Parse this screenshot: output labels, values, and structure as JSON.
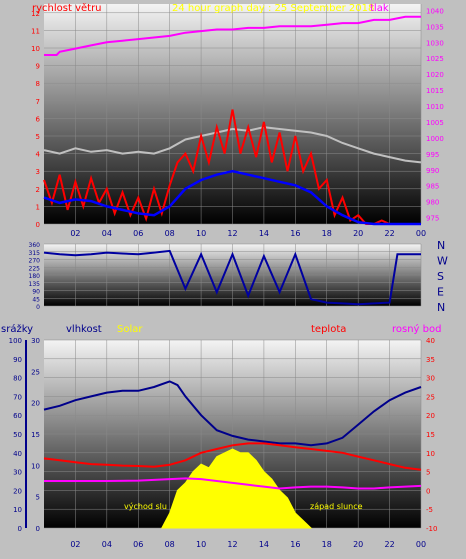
{
  "title": "24 hour graph day : 25 September 2018",
  "colors": {
    "frame_bg": "#c0c0c0",
    "wind_speed": "#ff0000",
    "wind_avg": "#0000ff",
    "wind_gust": "#c0c0c0",
    "pressure": "#ff00ff",
    "direction": "#0000a0",
    "humidity": "#00008b",
    "temperature": "#ff0000",
    "dewpoint": "#ff00ff",
    "solar": "#ffff00",
    "title_color": "#ffff00",
    "rain_axis": "#00008b"
  },
  "chart_data": [
    {
      "type": "line",
      "name": "wind-pressure",
      "legend": {
        "wind": "rychlost větru",
        "pressure": "tlak"
      },
      "x_ticks": [
        "02",
        "04",
        "06",
        "08",
        "10",
        "12",
        "14",
        "16",
        "18",
        "20",
        "22",
        "00"
      ],
      "y_left_ticks": [
        "0",
        "1",
        "2",
        "3",
        "4",
        "5",
        "6",
        "7",
        "8",
        "9",
        "10",
        "11",
        "12"
      ],
      "y_left_range": [
        0,
        12.5
      ],
      "y_right_ticks": [
        "975",
        "980",
        "985",
        "990",
        "995",
        "1000",
        "1005",
        "1010",
        "1015",
        "1020",
        "1025",
        "1030",
        "1035",
        "1040"
      ],
      "y_right_range": [
        973,
        1042
      ],
      "x_range": [
        0,
        24
      ],
      "series": [
        {
          "key": "gust",
          "points": [
            [
              0,
              4.2
            ],
            [
              1,
              4.0
            ],
            [
              2,
              4.3
            ],
            [
              3,
              4.1
            ],
            [
              4,
              4.2
            ],
            [
              5,
              4.0
            ],
            [
              6,
              4.1
            ],
            [
              7,
              4.0
            ],
            [
              8,
              4.3
            ],
            [
              9,
              4.8
            ],
            [
              10,
              5.0
            ],
            [
              11,
              5.2
            ],
            [
              12,
              5.4
            ],
            [
              13,
              5.3
            ],
            [
              14,
              5.5
            ],
            [
              15,
              5.4
            ],
            [
              16,
              5.3
            ],
            [
              17,
              5.2
            ],
            [
              18,
              5.0
            ],
            [
              19,
              4.6
            ],
            [
              20,
              4.3
            ],
            [
              21,
              4.0
            ],
            [
              22,
              3.8
            ],
            [
              23,
              3.6
            ],
            [
              24,
              3.5
            ]
          ]
        },
        {
          "key": "wind",
          "points": [
            [
              0,
              2.5
            ],
            [
              0.5,
              1.2
            ],
            [
              1,
              2.8
            ],
            [
              1.5,
              0.8
            ],
            [
              2,
              2.4
            ],
            [
              2.5,
              1.0
            ],
            [
              3,
              2.6
            ],
            [
              3.5,
              1.2
            ],
            [
              4,
              2.0
            ],
            [
              4.5,
              0.6
            ],
            [
              5,
              1.8
            ],
            [
              5.5,
              0.5
            ],
            [
              6,
              1.5
            ],
            [
              6.5,
              0.3
            ],
            [
              7,
              2.0
            ],
            [
              7.5,
              0.6
            ],
            [
              8,
              2.2
            ],
            [
              8.5,
              3.5
            ],
            [
              9,
              4.0
            ],
            [
              9.5,
              3.0
            ],
            [
              10,
              5.0
            ],
            [
              10.5,
              3.5
            ],
            [
              11,
              5.5
            ],
            [
              11.5,
              4.0
            ],
            [
              12,
              6.5
            ],
            [
              12.5,
              4.0
            ],
            [
              13,
              5.5
            ],
            [
              13.5,
              3.8
            ],
            [
              14,
              5.8
            ],
            [
              14.5,
              3.5
            ],
            [
              15,
              5.2
            ],
            [
              15.5,
              3.0
            ],
            [
              16,
              5.0
            ],
            [
              16.5,
              3.0
            ],
            [
              17,
              4.0
            ],
            [
              17.5,
              2.0
            ],
            [
              18,
              2.5
            ],
            [
              18.5,
              0.5
            ],
            [
              19,
              1.5
            ],
            [
              19.5,
              0.2
            ],
            [
              20,
              0.5
            ],
            [
              20.5,
              0
            ],
            [
              21,
              0
            ],
            [
              21.5,
              0.2
            ],
            [
              22,
              0
            ],
            [
              23,
              0
            ],
            [
              24,
              0
            ]
          ]
        },
        {
          "key": "avg",
          "points": [
            [
              0,
              1.5
            ],
            [
              1,
              1.2
            ],
            [
              2,
              1.4
            ],
            [
              3,
              1.3
            ],
            [
              4,
              1.0
            ],
            [
              5,
              0.8
            ],
            [
              6,
              0.6
            ],
            [
              7,
              0.5
            ],
            [
              8,
              1.0
            ],
            [
              9,
              2.0
            ],
            [
              10,
              2.5
            ],
            [
              11,
              2.8
            ],
            [
              12,
              3.0
            ],
            [
              13,
              2.8
            ],
            [
              14,
              2.6
            ],
            [
              15,
              2.4
            ],
            [
              16,
              2.2
            ],
            [
              17,
              1.8
            ],
            [
              18,
              1.0
            ],
            [
              19,
              0.5
            ],
            [
              20,
              0.1
            ],
            [
              21,
              0
            ],
            [
              22,
              0
            ],
            [
              23,
              0
            ],
            [
              24,
              0
            ]
          ]
        },
        {
          "key": "pressure",
          "points": [
            [
              0,
              1026
            ],
            [
              0.8,
              1026
            ],
            [
              1,
              1027
            ],
            [
              2,
              1028
            ],
            [
              3,
              1029
            ],
            [
              4,
              1030
            ],
            [
              5,
              1030.5
            ],
            [
              6,
              1031
            ],
            [
              7,
              1031.5
            ],
            [
              8,
              1032
            ],
            [
              9,
              1033
            ],
            [
              10,
              1033.5
            ],
            [
              11,
              1034
            ],
            [
              12,
              1034
            ],
            [
              13,
              1034.5
            ],
            [
              14,
              1034.5
            ],
            [
              15,
              1035
            ],
            [
              16,
              1035
            ],
            [
              17,
              1035
            ],
            [
              18,
              1035.5
            ],
            [
              19,
              1036
            ],
            [
              20,
              1036
            ],
            [
              21,
              1037
            ],
            [
              22,
              1037
            ],
            [
              23,
              1038
            ],
            [
              24,
              1038
            ]
          ]
        }
      ]
    },
    {
      "type": "line",
      "name": "wind-direction",
      "direction_labels": [
        "N",
        "W",
        "S",
        "E",
        "N"
      ],
      "x_ticks": [
        "02",
        "04",
        "06",
        "08",
        "10",
        "12",
        "14",
        "16",
        "18",
        "20",
        "22",
        "00"
      ],
      "y_ticks": [
        "0",
        "45",
        "90",
        "135",
        "180",
        "225",
        "270",
        "315",
        "360"
      ],
      "y_range": [
        0,
        360
      ],
      "x_range": [
        0,
        24
      ],
      "series": [
        {
          "key": "direction",
          "points": [
            [
              0,
              310
            ],
            [
              1,
              300
            ],
            [
              2,
              295
            ],
            [
              3,
              300
            ],
            [
              4,
              310
            ],
            [
              5,
              305
            ],
            [
              6,
              300
            ],
            [
              7,
              310
            ],
            [
              8,
              320
            ],
            [
              9,
              100
            ],
            [
              10,
              300
            ],
            [
              11,
              80
            ],
            [
              12,
              300
            ],
            [
              13,
              60
            ],
            [
              14,
              290
            ],
            [
              15,
              80
            ],
            [
              16,
              300
            ],
            [
              17,
              40
            ],
            [
              18,
              20
            ],
            [
              19,
              15
            ],
            [
              20,
              10
            ],
            [
              21,
              15
            ],
            [
              22,
              20
            ],
            [
              22.5,
              300
            ],
            [
              23,
              300
            ],
            [
              24,
              300
            ]
          ]
        }
      ]
    },
    {
      "type": "area",
      "name": "humidity-temp-solar",
      "legend": {
        "rain": "srážky",
        "humidity": "vlhkost",
        "solar": "Solar",
        "temperature": "teplota",
        "dewpoint": "rosný bod"
      },
      "annotations": {
        "sunrise": "východ slu",
        "sunset": "západ slunce"
      },
      "x_ticks": [
        "02",
        "04",
        "06",
        "08",
        "10",
        "12",
        "14",
        "16",
        "18",
        "20",
        "22",
        "00"
      ],
      "y_rain_ticks": [
        "0",
        "10",
        "20",
        "30",
        "40",
        "50",
        "60",
        "70",
        "80",
        "90",
        "100"
      ],
      "y_rain_range": [
        0,
        100
      ],
      "y_humidity_ticks": [
        "0",
        "5",
        "10",
        "15",
        "20",
        "25",
        "30"
      ],
      "y_humidity_range": [
        0,
        30
      ],
      "y_temp_ticks": [
        "-10",
        "-5",
        "0",
        "5",
        "10",
        "15",
        "20",
        "25",
        "30",
        "35",
        "40"
      ],
      "y_temp_range": [
        -10,
        40
      ],
      "x_range": [
        0,
        24
      ],
      "series": [
        {
          "key": "humidity",
          "axis": "rain",
          "points": [
            [
              0,
              63
            ],
            [
              1,
              65
            ],
            [
              2,
              68
            ],
            [
              3,
              70
            ],
            [
              4,
              72
            ],
            [
              5,
              73
            ],
            [
              6,
              73
            ],
            [
              7,
              75
            ],
            [
              8,
              78
            ],
            [
              8.5,
              76
            ],
            [
              9,
              70
            ],
            [
              10,
              60
            ],
            [
              11,
              52
            ],
            [
              12,
              49
            ],
            [
              13,
              47
            ],
            [
              14,
              46
            ],
            [
              15,
              45
            ],
            [
              16,
              45
            ],
            [
              17,
              44
            ],
            [
              18,
              45
            ],
            [
              19,
              48
            ],
            [
              20,
              55
            ],
            [
              21,
              62
            ],
            [
              22,
              68
            ],
            [
              23,
              72
            ],
            [
              24,
              75
            ]
          ]
        },
        {
          "key": "temperature",
          "axis": "temp",
          "points": [
            [
              0,
              8.5
            ],
            [
              1,
              8.0
            ],
            [
              2,
              7.5
            ],
            [
              3,
              7.0
            ],
            [
              4,
              6.8
            ],
            [
              5,
              6.6
            ],
            [
              6,
              6.5
            ],
            [
              7,
              6.3
            ],
            [
              8,
              6.8
            ],
            [
              9,
              8.0
            ],
            [
              10,
              10.0
            ],
            [
              11,
              11.0
            ],
            [
              12,
              12.0
            ],
            [
              13,
              12.5
            ],
            [
              14,
              12.5
            ],
            [
              15,
              12.0
            ],
            [
              16,
              11.5
            ],
            [
              17,
              11.0
            ],
            [
              18,
              10.5
            ],
            [
              19,
              10.0
            ],
            [
              20,
              9.0
            ],
            [
              21,
              8.0
            ],
            [
              22,
              7.0
            ],
            [
              23,
              6.0
            ],
            [
              24,
              5.5
            ]
          ]
        },
        {
          "key": "dewpoint",
          "axis": "temp",
          "points": [
            [
              0,
              2.5
            ],
            [
              2,
              2.5
            ],
            [
              4,
              2.5
            ],
            [
              6,
              2.6
            ],
            [
              8,
              3.0
            ],
            [
              9,
              3.2
            ],
            [
              10,
              3.0
            ],
            [
              11,
              2.5
            ],
            [
              12,
              2.0
            ],
            [
              13,
              1.5
            ],
            [
              14,
              1.0
            ],
            [
              15,
              0.5
            ],
            [
              16,
              0.8
            ],
            [
              17,
              1.0
            ],
            [
              18,
              1.0
            ],
            [
              19,
              0.8
            ],
            [
              20,
              0.5
            ],
            [
              21,
              0.5
            ],
            [
              22,
              0.8
            ],
            [
              23,
              1.0
            ],
            [
              24,
              1.2
            ]
          ]
        },
        {
          "key": "solar",
          "axis": "temp",
          "points": [
            [
              7.5,
              -10
            ],
            [
              8,
              -6
            ],
            [
              8.5,
              0
            ],
            [
              9,
              2
            ],
            [
              9.5,
              5
            ],
            [
              10,
              7
            ],
            [
              10.5,
              6
            ],
            [
              11,
              9
            ],
            [
              11.5,
              10
            ],
            [
              12,
              11
            ],
            [
              12.5,
              10
            ],
            [
              13,
              10
            ],
            [
              13.5,
              8
            ],
            [
              14,
              5
            ],
            [
              14.5,
              3
            ],
            [
              15,
              0
            ],
            [
              15.5,
              -2
            ],
            [
              16,
              -6
            ],
            [
              16.5,
              -8
            ],
            [
              17,
              -10
            ]
          ]
        }
      ]
    }
  ]
}
